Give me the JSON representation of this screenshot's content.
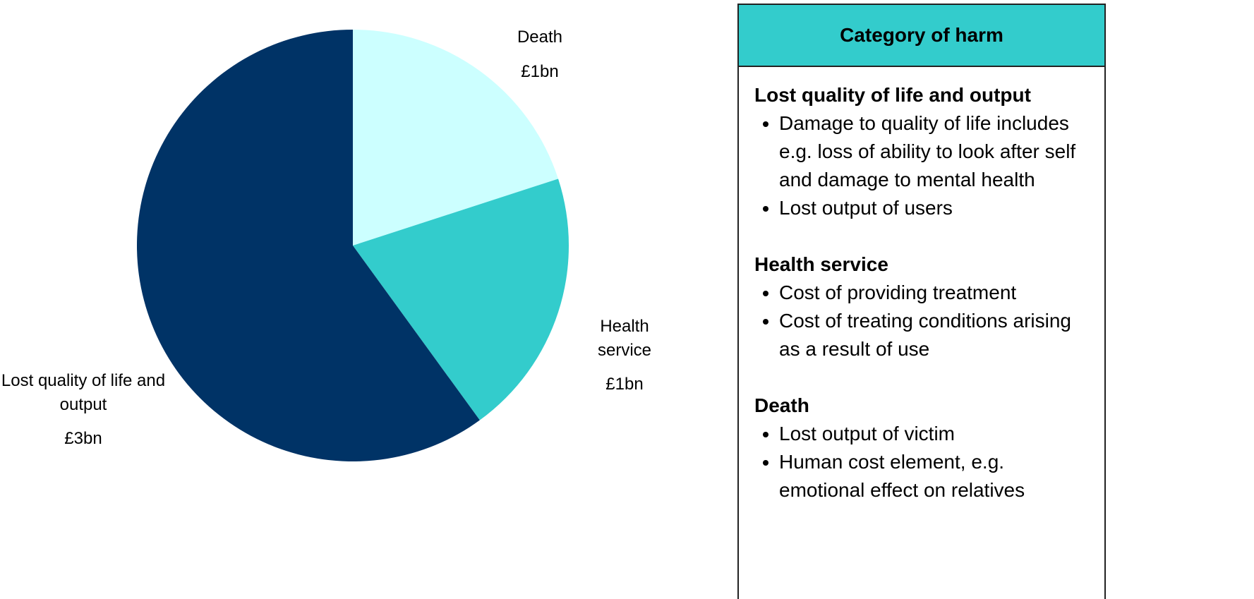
{
  "chart_data": {
    "type": "pie",
    "categories": [
      "Death",
      "Health service",
      "Lost quality of life and output"
    ],
    "values": [
      1,
      1,
      3
    ],
    "value_labels": [
      "£1bn",
      "£1bn",
      "£3bn"
    ],
    "colors": [
      "#ccffff",
      "#33cccc",
      "#003366"
    ]
  },
  "panel": {
    "title": "Category of harm",
    "sections": [
      {
        "heading": "Lost quality of life and output",
        "items": [
          "Damage to quality of life includes e.g. loss of ability to look after self and damage to mental health",
          "Lost output of users"
        ]
      },
      {
        "heading": "Health service",
        "items": [
          "Cost of providing treatment",
          "Cost of treating conditions arising as a result of use"
        ]
      },
      {
        "heading": "Death",
        "items": [
          "Lost output of victim",
          "Human cost element, e.g. emotional effect on relatives"
        ]
      }
    ]
  }
}
